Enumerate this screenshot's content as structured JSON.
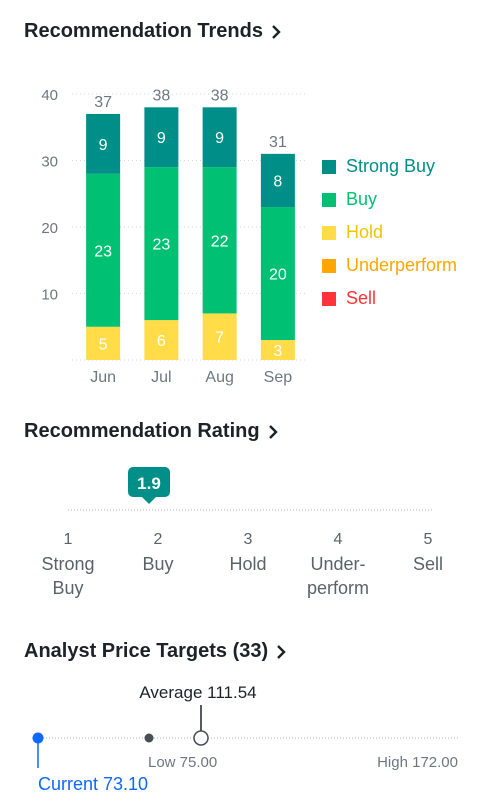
{
  "trends": {
    "title": "Recommendation Trends",
    "chevron_icon": "chevron-right-icon"
  },
  "chart_data": {
    "type": "bar",
    "stacked": true,
    "categories": [
      "Jun",
      "Jul",
      "Aug",
      "Sep"
    ],
    "ylim": [
      0,
      40
    ],
    "yticks": [
      10,
      20,
      30,
      40
    ],
    "grid": true,
    "legend_position": "right",
    "series": [
      {
        "name": "Sell",
        "color": "#ff333a",
        "values": [
          0,
          0,
          0,
          0
        ]
      },
      {
        "name": "Underperform",
        "color": "#ffa700",
        "values": [
          0,
          0,
          0,
          0
        ]
      },
      {
        "name": "Hold",
        "color": "#ffdc48",
        "values": [
          5,
          6,
          7,
          3
        ]
      },
      {
        "name": "Buy",
        "color": "#00c073",
        "values": [
          23,
          23,
          22,
          20
        ]
      },
      {
        "name": "Strong Buy",
        "color": "#008f88",
        "values": [
          9,
          9,
          9,
          8
        ]
      }
    ],
    "totals": [
      37,
      38,
      38,
      31
    ]
  },
  "legend": [
    {
      "label": "Strong Buy",
      "color": "#008f88"
    },
    {
      "label": "Buy",
      "color": "#00c073"
    },
    {
      "label": "Hold",
      "color": "#ffdc48"
    },
    {
      "label": "Underperform",
      "color": "#ffa700"
    },
    {
      "label": "Sell",
      "color": "#ff333a"
    }
  ],
  "rating": {
    "title": "Recommendation Rating",
    "value": 1.9,
    "value_label": "1.9",
    "marker_color": "#008f88",
    "scale": [
      {
        "num": "1",
        "line1": "Strong",
        "line2": "Buy"
      },
      {
        "num": "2",
        "line1": "Buy",
        "line2": ""
      },
      {
        "num": "3",
        "line1": "Hold",
        "line2": ""
      },
      {
        "num": "4",
        "line1": "Under-",
        "line2": "perform"
      },
      {
        "num": "5",
        "line1": "Sell",
        "line2": ""
      }
    ]
  },
  "price_targets": {
    "title": "Analyst Price Targets (33)",
    "average_label": "Average 111.54",
    "low_label": "Low 75.00",
    "high_label": "High 172.00",
    "current_label": "Current 73.10",
    "current": 73.1,
    "low": 75.0,
    "average": 111.54,
    "high": 172.0,
    "current_color": "#0f69ff"
  }
}
